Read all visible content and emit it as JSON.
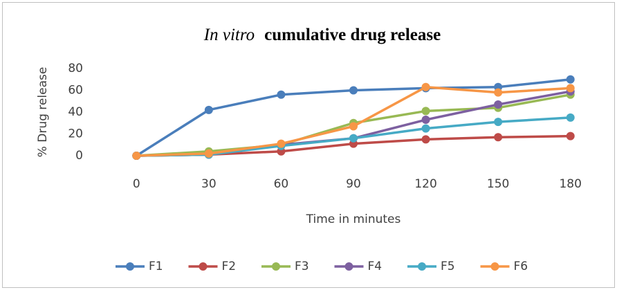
{
  "chart_data": {
    "type": "line",
    "title": [
      "In vitro",
      "cumulative drug release"
    ],
    "x_label": "Time in minutes",
    "y_label": "% Drug release",
    "categories": [
      "0",
      "30",
      "60",
      "90",
      "120",
      "150",
      "180"
    ],
    "series": [
      {
        "name": "F1",
        "color": "#4a7ebb",
        "values": [
          0,
          42,
          56,
          60,
          62,
          63,
          70
        ]
      },
      {
        "name": "F2",
        "color": "#be4b48",
        "values": [
          0,
          1,
          4,
          11,
          15,
          17,
          18
        ]
      },
      {
        "name": "F3",
        "color": "#98b954",
        "values": [
          0,
          4,
          10,
          30,
          41,
          44,
          56
        ]
      },
      {
        "name": "F4",
        "color": "#7d60a0",
        "values": [
          0,
          1,
          10,
          16,
          33,
          47,
          59
        ]
      },
      {
        "name": "F5",
        "color": "#46aac5",
        "values": [
          0,
          1,
          9,
          16,
          25,
          31,
          35
        ]
      },
      {
        "name": "F6",
        "color": "#f79646",
        "values": [
          0,
          2,
          11,
          27,
          63,
          58,
          62
        ]
      }
    ],
    "ylim": [
      0,
      80
    ],
    "yticks": [
      0,
      20,
      40,
      60,
      80
    ],
    "grid": false,
    "legend": "bottom"
  }
}
